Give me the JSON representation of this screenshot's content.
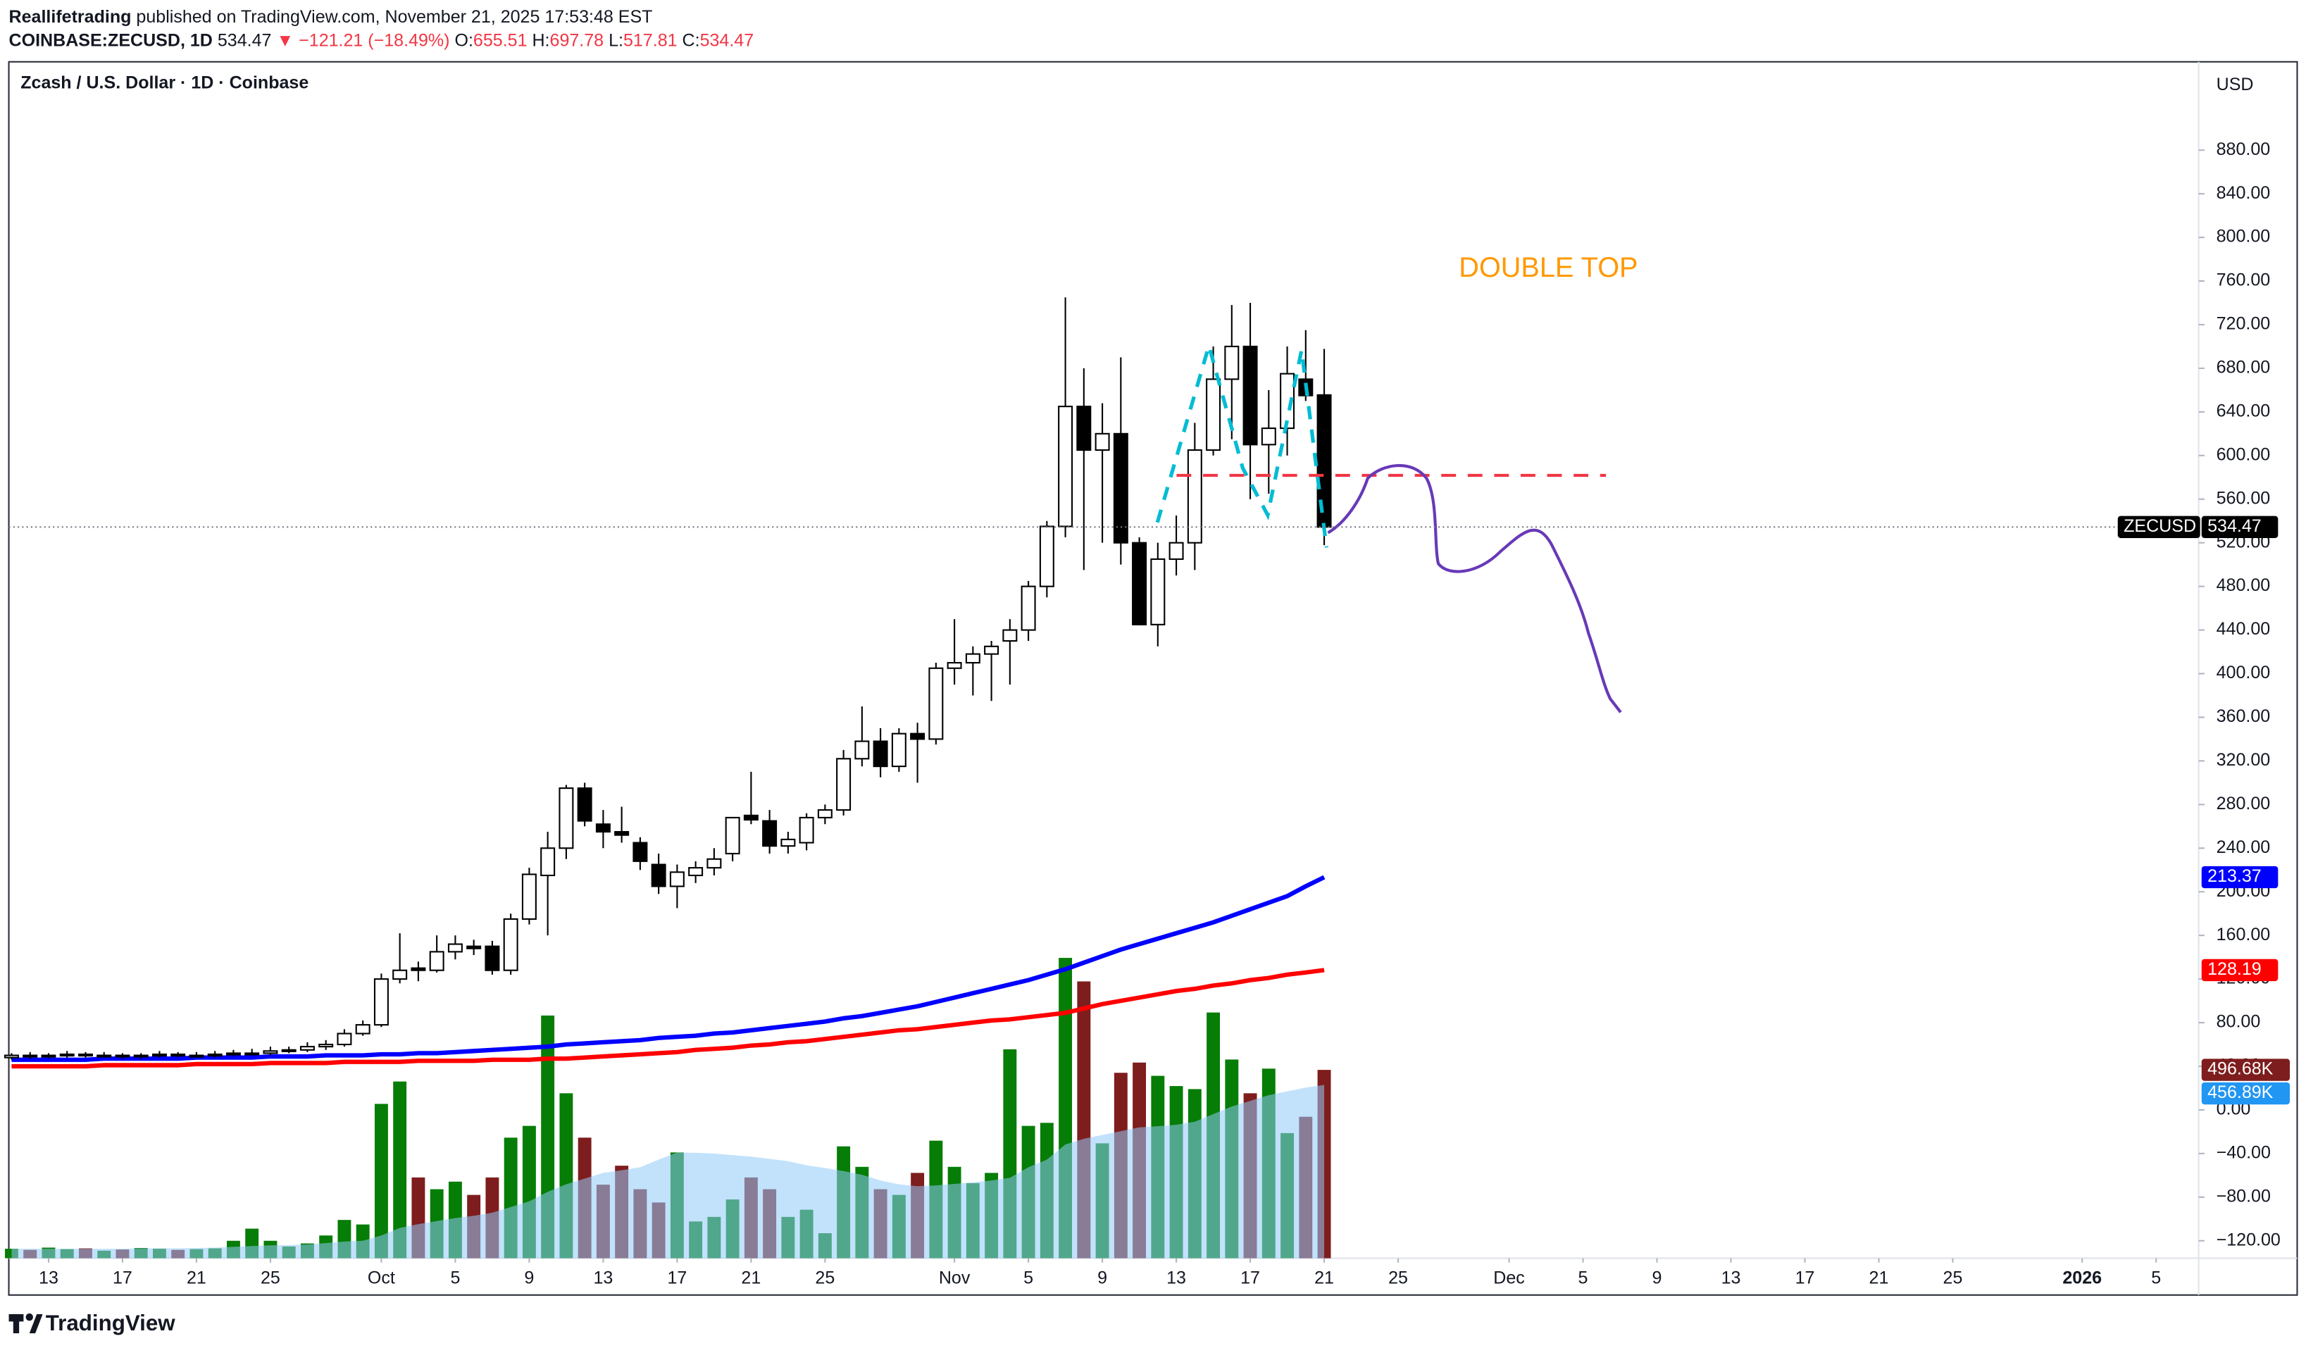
{
  "header": {
    "author": "Reallifetrading",
    "published": "published on TradingView.com, November 21, 2025 17:53:48 EST",
    "symbol_line": "COINBASE:ZECUSD, 1D",
    "last": "534.47",
    "change": "▼ −121.21 (−18.49%)",
    "ohlc": [
      {
        "label": "O:",
        "value": "655.51"
      },
      {
        "label": "H:",
        "value": "697.78"
      },
      {
        "label": "L:",
        "value": "517.81"
      },
      {
        "label": "C:",
        "value": "534.47"
      }
    ]
  },
  "chart_data": {
    "type": "candlestick",
    "title": "Zcash / U.S. Dollar · 1D · Coinbase",
    "currency": "USD",
    "symbol": "ZECUSD",
    "annotation": "DOUBLE TOP",
    "xlim": [
      -0.15,
      118.3
    ],
    "xticks": [
      {
        "value": 2,
        "label": "13"
      },
      {
        "value": 6,
        "label": "17"
      },
      {
        "value": 10,
        "label": "21"
      },
      {
        "value": 14,
        "label": "25"
      },
      {
        "value": 20,
        "label": "Oct"
      },
      {
        "value": 24,
        "label": "5"
      },
      {
        "value": 28,
        "label": "9"
      },
      {
        "value": 32,
        "label": "13"
      },
      {
        "value": 36,
        "label": "17"
      },
      {
        "value": 40,
        "label": "21"
      },
      {
        "value": 44,
        "label": "25"
      },
      {
        "value": 51,
        "label": "Nov"
      },
      {
        "value": 55,
        "label": "5"
      },
      {
        "value": 59,
        "label": "9"
      },
      {
        "value": 63,
        "label": "13"
      },
      {
        "value": 67,
        "label": "17"
      },
      {
        "value": 71,
        "label": "21"
      },
      {
        "value": 75,
        "label": "25"
      },
      {
        "value": 81,
        "label": "Dec"
      },
      {
        "value": 85,
        "label": "5"
      },
      {
        "value": 89,
        "label": "9"
      },
      {
        "value": 93,
        "label": "13"
      },
      {
        "value": 97,
        "label": "17"
      },
      {
        "value": 101,
        "label": "21"
      },
      {
        "value": 105,
        "label": "25"
      },
      {
        "value": 112,
        "label": "2026"
      },
      {
        "value": 116,
        "label": "5"
      }
    ],
    "ylim": [
      -136,
      961
    ],
    "yticks": [
      {
        "value": -120,
        "label": "−120.00"
      },
      {
        "value": -80,
        "label": "−80.00"
      },
      {
        "value": -40,
        "label": "−40.00"
      },
      {
        "value": 0,
        "label": "0.00"
      },
      {
        "value": 40,
        "label": "40.00"
      },
      {
        "value": 80,
        "label": "80.00"
      },
      {
        "value": 120,
        "label": "120.00"
      },
      {
        "value": 160,
        "label": "160.00"
      },
      {
        "value": 200,
        "label": "200.00"
      },
      {
        "value": 240,
        "label": "240.00"
      },
      {
        "value": 280,
        "label": "280.00"
      },
      {
        "value": 320,
        "label": "320.00"
      },
      {
        "value": 360,
        "label": "360.00"
      },
      {
        "value": 400,
        "label": "400.00"
      },
      {
        "value": 440,
        "label": "440.00"
      },
      {
        "value": 480,
        "label": "480.00"
      },
      {
        "value": 520,
        "label": "520.00"
      },
      {
        "value": 560,
        "label": "560.00"
      },
      {
        "value": 600,
        "label": "600.00"
      },
      {
        "value": 640,
        "label": "640.00"
      },
      {
        "value": 680,
        "label": "680.00"
      },
      {
        "value": 720,
        "label": "720.00"
      },
      {
        "value": 760,
        "label": "760.00"
      },
      {
        "value": 800,
        "label": "800.00"
      },
      {
        "value": 840,
        "label": "840.00"
      },
      {
        "value": 880,
        "label": "880.00"
      }
    ],
    "up_color": "#ffffff",
    "down_color": "#000000",
    "x": [
      0,
      1,
      2,
      3,
      4,
      5,
      6,
      7,
      8,
      9,
      10,
      11,
      12,
      13,
      14,
      15,
      16,
      17,
      18,
      19,
      20,
      21,
      22,
      23,
      24,
      25,
      26,
      27,
      28,
      29,
      30,
      31,
      32,
      33,
      34,
      35,
      36,
      37,
      38,
      39,
      40,
      41,
      42,
      43,
      44,
      45,
      46,
      47,
      48,
      49,
      50,
      51,
      52,
      53,
      54,
      55,
      56,
      57,
      58,
      59,
      60,
      61,
      62,
      63,
      64,
      65,
      66,
      67,
      68,
      69,
      70,
      71
    ],
    "open": [
      48,
      50,
      49,
      50,
      51,
      50,
      50,
      49,
      50,
      51,
      50,
      50,
      51,
      52,
      52,
      54,
      55,
      58,
      60,
      70,
      78,
      120,
      130,
      128,
      145,
      150,
      150,
      128,
      175,
      215,
      240,
      295,
      262,
      255,
      245,
      225,
      205,
      215,
      222,
      235,
      270,
      265,
      242,
      245,
      268,
      275,
      322,
      338,
      315,
      345,
      340,
      405,
      410,
      418,
      430,
      440,
      480,
      535,
      645,
      605,
      620,
      520,
      445,
      505,
      520,
      605,
      670,
      700,
      610,
      625,
      670,
      655.51
    ],
    "high": [
      52,
      53,
      52,
      54,
      53,
      53,
      52,
      52,
      54,
      53,
      53,
      54,
      55,
      56,
      58,
      58,
      62,
      64,
      74,
      82,
      125,
      162,
      136,
      160,
      160,
      156,
      155,
      180,
      222,
      255,
      298,
      300,
      275,
      278,
      250,
      235,
      225,
      228,
      240,
      268,
      310,
      275,
      255,
      272,
      280,
      330,
      370,
      350,
      350,
      355,
      410,
      450,
      425,
      430,
      450,
      485,
      540,
      745,
      680,
      648,
      690,
      525,
      520,
      545,
      630,
      700,
      738,
      740,
      660,
      700,
      715,
      697.78
    ],
    "low": [
      46,
      47,
      47,
      48,
      48,
      48,
      47,
      47,
      48,
      48,
      48,
      48,
      49,
      50,
      50,
      52,
      53,
      55,
      58,
      68,
      76,
      116,
      118,
      126,
      138,
      142,
      124,
      124,
      170,
      160,
      230,
      260,
      240,
      245,
      220,
      198,
      185,
      208,
      215,
      228,
      262,
      235,
      235,
      238,
      262,
      270,
      315,
      305,
      310,
      300,
      335,
      390,
      380,
      375,
      390,
      430,
      470,
      525,
      495,
      520,
      500,
      445,
      425,
      490,
      495,
      600,
      615,
      560,
      565,
      600,
      650,
      517.81
    ],
    "close": [
      50,
      49,
      50,
      51,
      50,
      50,
      49,
      50,
      51,
      50,
      50,
      51,
      52,
      52,
      54,
      55,
      58,
      60,
      70,
      78,
      120,
      128,
      128,
      145,
      152,
      148,
      128,
      175,
      216,
      240,
      295,
      265,
      255,
      252,
      228,
      205,
      218,
      222,
      230,
      268,
      266,
      242,
      248,
      268,
      275,
      322,
      338,
      315,
      345,
      340,
      405,
      410,
      418,
      425,
      440,
      480,
      535,
      645,
      605,
      620,
      520,
      445,
      505,
      520,
      605,
      670,
      700,
      610,
      625,
      675,
      655,
      534.47
    ],
    "moving_averages": [
      {
        "color": "#0000ff",
        "values": [
          46,
          46,
          46,
          46,
          46,
          47,
          47,
          47,
          47,
          47,
          48,
          48,
          48,
          48,
          49,
          49,
          49,
          50,
          50,
          50,
          51,
          51,
          52,
          52,
          53,
          54,
          55,
          56,
          57,
          58,
          60,
          61,
          62,
          63,
          64,
          66,
          67,
          68,
          70,
          71,
          73,
          75,
          77,
          79,
          81,
          84,
          86,
          89,
          92,
          95,
          99,
          103,
          107,
          111,
          115,
          119,
          124,
          129,
          135,
          141,
          147,
          152,
          157,
          162,
          167,
          172,
          178,
          184,
          190,
          196,
          205,
          213.37
        ]
      },
      {
        "color": "#ff0000",
        "values": [
          40,
          40,
          40,
          40,
          40,
          41,
          41,
          41,
          41,
          41,
          42,
          42,
          42,
          42,
          43,
          43,
          43,
          43,
          44,
          44,
          44,
          44,
          45,
          45,
          45,
          45,
          46,
          46,
          46,
          47,
          47,
          48,
          49,
          50,
          51,
          52,
          53,
          55,
          56,
          57,
          59,
          60,
          62,
          63,
          65,
          67,
          69,
          71,
          73,
          74,
          76,
          78,
          80,
          82,
          83,
          85,
          87,
          89,
          93,
          97,
          100,
          103,
          106,
          109,
          111,
          114,
          116,
          119,
          121,
          124,
          126,
          128.19
        ]
      }
    ],
    "volume": {
      "vlim": [
        0,
        3155
      ],
      "up_color": "#067d06",
      "down_color": "#7e1d1d",
      "last_label": "496.68K",
      "values": [
        25,
        22,
        28,
        24,
        26,
        20,
        23,
        27,
        25,
        22,
        24,
        26,
        46,
        78,
        46,
        31,
        39,
        60,
        101,
        89,
        407,
        466,
        213,
        182,
        202,
        167,
        213,
        318,
        349,
        640,
        435,
        318,
        194,
        244,
        182,
        147,
        279,
        97,
        109,
        155,
        213,
        182,
        109,
        128,
        66,
        295,
        241,
        182,
        167,
        225,
        310,
        241,
        198,
        225,
        551,
        349,
        357,
        792,
        730,
        303,
        489,
        516,
        481,
        454,
        446,
        648,
        524,
        435,
        500,
        330,
        373,
        496.68
      ],
      "ma": {
        "color": "#90caf9",
        "last_label": "456.89K",
        "values": [
          25,
          25,
          25,
          25,
          25,
          25,
          25,
          26,
          26,
          26,
          27,
          28,
          30,
          32,
          34,
          35,
          36,
          40,
          44,
          46,
          60,
          80,
          90,
          98,
          106,
          112,
          120,
          135,
          150,
          175,
          195,
          210,
          225,
          232,
          240,
          260,
          279,
          278,
          276,
          272,
          268,
          262,
          256,
          245,
          238,
          230,
          220,
          205,
          195,
          190,
          192,
          196,
          200,
          205,
          212,
          240,
          260,
          300,
          315,
          325,
          335,
          345,
          348,
          352,
          360,
          380,
          400,
          415,
          430,
          440,
          450,
          456.89
        ]
      }
    }
  },
  "footer": {
    "brand": "TradingView"
  }
}
